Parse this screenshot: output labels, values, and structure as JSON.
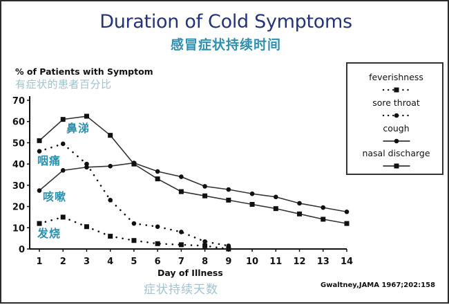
{
  "title": "Duration of Cold Symptoms",
  "subtitle_cn": "感冒症状持续时间",
  "ylabel": "% of Patients with Symptom",
  "ylabel_cn": "有症状的患者百分比",
  "xlabel": "Day of Illness",
  "xlabel_cn": "症状持续天数",
  "source": "Gwaltney,JAMA 1967;202:158",
  "legend": [
    {
      "label": "feverishness",
      "marker": "square",
      "line": "dotted"
    },
    {
      "label": "sore throat",
      "marker": "circle",
      "line": "dotted"
    },
    {
      "label": "cough",
      "marker": "circle",
      "line": "solid"
    },
    {
      "label": "nasal discharge",
      "marker": "square",
      "line": "solid"
    }
  ],
  "annotations_cn": {
    "nasal_discharge": "鼻涕",
    "sore_throat": "咽痛",
    "cough": "咳嗽",
    "feverishness": "发烧"
  },
  "chart_data": {
    "type": "line",
    "title": "Duration of Cold Symptoms",
    "xlabel": "Day of Illness",
    "ylabel": "% of Patients with Symptom",
    "x": [
      1,
      2,
      3,
      4,
      5,
      6,
      7,
      8,
      9,
      10,
      11,
      12,
      13,
      14
    ],
    "xlim": [
      1,
      14
    ],
    "ylim": [
      0,
      70
    ],
    "yticks": [
      0,
      10,
      20,
      30,
      40,
      50,
      60,
      70
    ],
    "legend_position": "right",
    "series": [
      {
        "name": "feverishness",
        "marker": "square",
        "line": "dotted",
        "color": "#111111",
        "x": [
          1,
          2,
          3,
          4,
          5,
          6,
          7,
          8,
          9
        ],
        "values": [
          12,
          15,
          10.5,
          6,
          4,
          2.5,
          2,
          1.5,
          0
        ]
      },
      {
        "name": "sore throat",
        "marker": "circle",
        "line": "dotted",
        "color": "#111111",
        "x": [
          1,
          2,
          3,
          4,
          5,
          6,
          7,
          8,
          9
        ],
        "values": [
          46,
          49.5,
          40,
          23,
          12,
          10.5,
          8,
          3.5,
          1.5
        ]
      },
      {
        "name": "cough",
        "marker": "circle",
        "line": "solid",
        "color": "#333333",
        "x": [
          1,
          2,
          3,
          4,
          5,
          6,
          7,
          8,
          9,
          10,
          11,
          12,
          13,
          14
        ],
        "values": [
          27.5,
          37,
          38.5,
          39,
          40.5,
          36.5,
          34,
          29.5,
          28,
          26,
          24.5,
          21.5,
          19.5,
          17.5
        ]
      },
      {
        "name": "nasal discharge",
        "marker": "square",
        "line": "solid",
        "color": "#333333",
        "x": [
          1,
          2,
          3,
          4,
          5,
          6,
          7,
          8,
          9,
          10,
          11,
          12,
          13,
          14
        ],
        "values": [
          51,
          61,
          62.5,
          53.5,
          40,
          33,
          27,
          25,
          23,
          21,
          19,
          16.5,
          14,
          12
        ]
      }
    ]
  }
}
